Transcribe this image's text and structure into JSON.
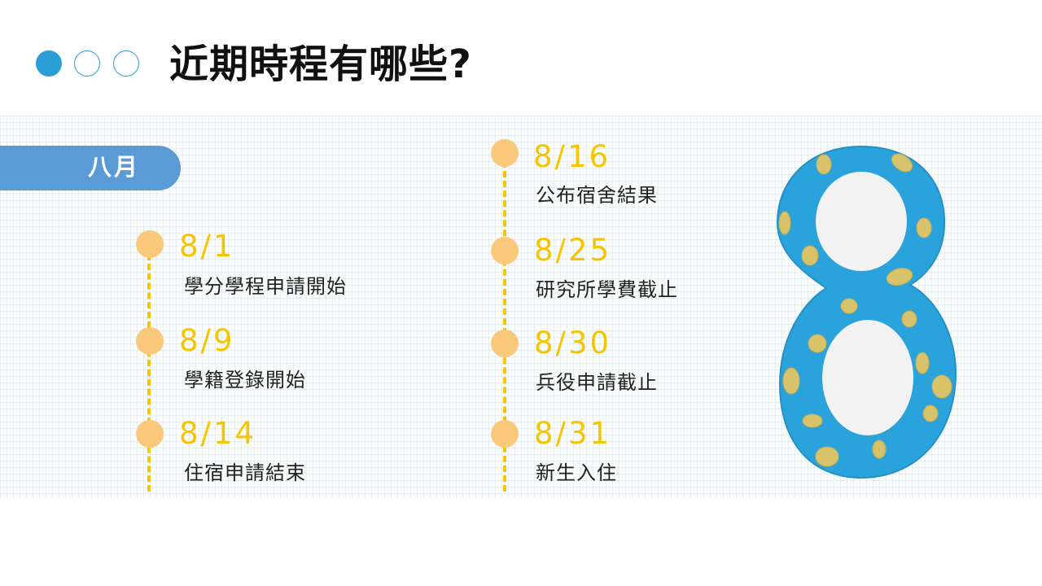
{
  "header": {
    "title": "近期時程有哪些?",
    "accent_color": "#2a9fd6"
  },
  "month_tab": {
    "label": "八月",
    "color": "#5b9bd5"
  },
  "timeline": {
    "line_color": "#f7c400",
    "marker_color": "#fac87a",
    "left_column": [
      {
        "date": "8/1",
        "text": "學分學程申請開始"
      },
      {
        "date": "8/9",
        "text": "學籍登錄開始"
      },
      {
        "date": "8/14",
        "text": "住宿申請結束"
      }
    ],
    "right_column": [
      {
        "date": "8/16",
        "text": "公布宿舍結果"
      },
      {
        "date": "8/25",
        "text": "研究所學費截止"
      },
      {
        "date": "8/30",
        "text": "兵役申請截止"
      },
      {
        "date": "8/31",
        "text": "新生入住"
      }
    ]
  },
  "illustration": {
    "icon": "number-eight-illustration",
    "fill_color": "#2aa3dc",
    "spot_color": "#d8c26a",
    "hole_color": "#f2f2f2"
  }
}
